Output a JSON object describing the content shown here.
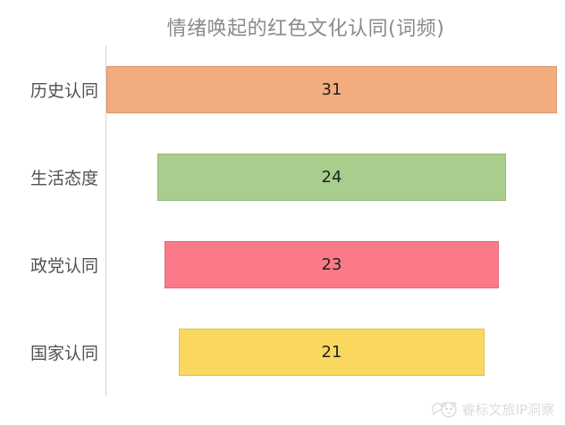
{
  "title": "情绪唤起的红色文化认同(词频)",
  "watermark": {
    "text": "睿标文旅IP洞察"
  },
  "chart_data": {
    "type": "bar",
    "orientation": "horizontal-centered",
    "title": "情绪唤起的红色文化认同(词频)",
    "xlabel": "",
    "ylabel": "",
    "categories": [
      "历史认同",
      "生活态度",
      "政党认同",
      "国家认同"
    ],
    "values": [
      31,
      24,
      23,
      21
    ],
    "colors": [
      "#f2ac7e",
      "#a8cd8c",
      "#fa7a89",
      "#fad75f"
    ],
    "xlim": [
      0,
      31
    ],
    "value_labels": "inside-center",
    "grid": false,
    "legend": false,
    "axis_line_color": "#d6d6d6",
    "title_color": "#8a8a8a",
    "label_color": "#525252",
    "value_color": "#222222"
  }
}
